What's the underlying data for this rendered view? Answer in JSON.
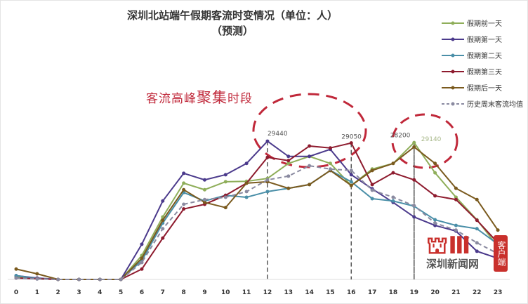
{
  "chart_data": {
    "type": "line",
    "title": "深圳北站端午假期客流时变情况（单位：人）",
    "subtitle": "（预测）",
    "categories": [
      "0",
      "1",
      "2",
      "3",
      "4",
      "5",
      "6",
      "7",
      "8",
      "9",
      "10",
      "11",
      "12",
      "13",
      "14",
      "15",
      "16",
      "17",
      "18",
      "19",
      "20",
      "21",
      "22",
      "23"
    ],
    "ylim": [
      0,
      30000
    ],
    "grid": false,
    "legend_position": "right",
    "series": [
      {
        "name": "假期前一天",
        "color": "#8fae5a",
        "dash": false,
        "values": [
          600,
          150,
          0,
          0,
          0,
          0,
          5100,
          13300,
          20500,
          19100,
          20800,
          20900,
          21500,
          24700,
          26200,
          24700,
          20000,
          23500,
          24700,
          29140,
          22700,
          17500,
          12700,
          7000
        ]
      },
      {
        "name": "假期第一天",
        "color": "#4b3a8c",
        "dash": false,
        "values": [
          800,
          300,
          0,
          0,
          0,
          0,
          7500,
          16700,
          22600,
          21200,
          22300,
          24700,
          29440,
          26200,
          26200,
          27700,
          22300,
          19300,
          16400,
          13300,
          11500,
          10300,
          6000,
          4500
        ]
      },
      {
        "name": "假期第二天",
        "color": "#4a8fa8",
        "dash": false,
        "values": [
          800,
          200,
          0,
          0,
          0,
          0,
          4000,
          12000,
          18500,
          16700,
          17900,
          17500,
          18700,
          19400,
          20200,
          23200,
          20800,
          17200,
          16700,
          15600,
          12700,
          11500,
          10800,
          7500
        ]
      },
      {
        "name": "假期第三天",
        "color": "#8e1b2e",
        "dash": false,
        "values": [
          300,
          150,
          0,
          0,
          0,
          0,
          2200,
          8800,
          15000,
          16000,
          17900,
          20500,
          26000,
          25300,
          28400,
          28000,
          29050,
          20200,
          22700,
          21200,
          17800,
          17000,
          12600,
          7800
        ]
      },
      {
        "name": "假期后一天",
        "color": "#7a5a1e",
        "dash": false,
        "values": [
          2200,
          1200,
          0,
          0,
          0,
          0,
          4500,
          12600,
          19100,
          16400,
          15300,
          20500,
          20800,
          19400,
          20200,
          23200,
          20000,
          23200,
          24700,
          28200,
          24700,
          19400,
          17000,
          10500
        ]
      },
      {
        "name": "历史周末客流均值",
        "color": "#8a8aa0",
        "dash": true,
        "values": [
          300,
          100,
          0,
          0,
          0,
          0,
          3600,
          10800,
          16000,
          17000,
          17500,
          18700,
          21200,
          22000,
          24200,
          23500,
          23200,
          19000,
          17500,
          15700,
          12000,
          10500,
          7800,
          5500
        ]
      }
    ],
    "annotations": [
      {
        "text": "29440",
        "x": "12",
        "series": "假期第一天"
      },
      {
        "text": "29050",
        "x": "16",
        "series": "假期第三天"
      },
      {
        "text": "28200",
        "x": "19",
        "series": "假期后一天"
      },
      {
        "text": "29140",
        "x": "19",
        "series": "假期前一天"
      }
    ],
    "peak_label": {
      "part1": "客流高峰",
      "part2": "聚集",
      "part3": "时段"
    },
    "highlight_color": "#c0283a"
  },
  "watermark": {
    "logo": "深圳",
    "text": "深圳新闻网",
    "badge": "客户端"
  }
}
